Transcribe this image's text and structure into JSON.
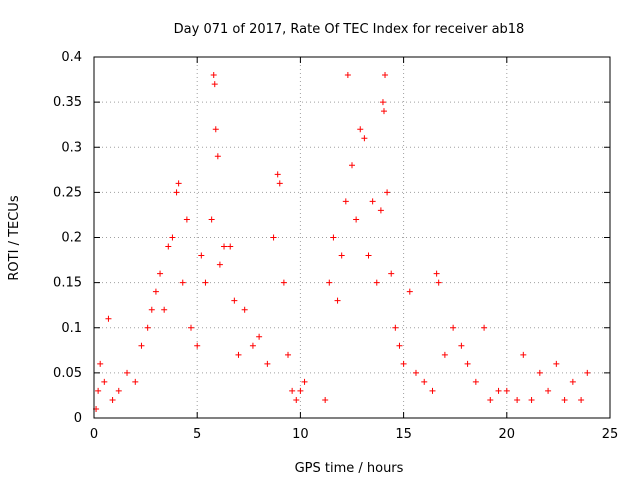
{
  "chart_data": {
    "type": "scatter",
    "title": "Day 071 of 2017, Rate Of TEC Index for receiver ab18",
    "xlabel": "GPS time / hours",
    "ylabel": "ROTI / TECUs",
    "xlim": [
      0,
      25
    ],
    "ylim": [
      0,
      0.4
    ],
    "x_ticks": [
      "0",
      "5",
      "10",
      "15",
      "20",
      "25"
    ],
    "y_ticks": [
      "0",
      "0.05",
      "0.1",
      "0.15",
      "0.2",
      "0.25",
      "0.3",
      "0.35",
      "0.4"
    ],
    "grid": true,
    "marker": "+",
    "series_color": "#ff0000",
    "points": [
      [
        0.1,
        0.01
      ],
      [
        0.2,
        0.03
      ],
      [
        0.3,
        0.06
      ],
      [
        0.5,
        0.04
      ],
      [
        0.7,
        0.11
      ],
      [
        0.9,
        0.02
      ],
      [
        1.2,
        0.03
      ],
      [
        1.6,
        0.05
      ],
      [
        2.0,
        0.04
      ],
      [
        2.3,
        0.08
      ],
      [
        2.6,
        0.1
      ],
      [
        2.8,
        0.12
      ],
      [
        3.0,
        0.14
      ],
      [
        3.2,
        0.16
      ],
      [
        3.4,
        0.12
      ],
      [
        3.6,
        0.19
      ],
      [
        3.8,
        0.2
      ],
      [
        4.0,
        0.25
      ],
      [
        4.1,
        0.26
      ],
      [
        4.3,
        0.15
      ],
      [
        4.5,
        0.22
      ],
      [
        4.7,
        0.1
      ],
      [
        5.0,
        0.08
      ],
      [
        5.2,
        0.18
      ],
      [
        5.4,
        0.15
      ],
      [
        5.7,
        0.22
      ],
      [
        5.8,
        0.38
      ],
      [
        5.85,
        0.37
      ],
      [
        5.9,
        0.32
      ],
      [
        6.0,
        0.29
      ],
      [
        6.1,
        0.17
      ],
      [
        6.3,
        0.19
      ],
      [
        6.6,
        0.19
      ],
      [
        6.8,
        0.13
      ],
      [
        7.0,
        0.07
      ],
      [
        7.3,
        0.12
      ],
      [
        7.7,
        0.08
      ],
      [
        8.0,
        0.09
      ],
      [
        8.4,
        0.06
      ],
      [
        8.7,
        0.2
      ],
      [
        8.9,
        0.27
      ],
      [
        9.0,
        0.26
      ],
      [
        9.2,
        0.15
      ],
      [
        9.4,
        0.07
      ],
      [
        9.6,
        0.03
      ],
      [
        9.8,
        0.02
      ],
      [
        10.0,
        0.03
      ],
      [
        10.2,
        0.04
      ],
      [
        11.2,
        0.02
      ],
      [
        11.4,
        0.15
      ],
      [
        11.6,
        0.2
      ],
      [
        11.8,
        0.13
      ],
      [
        12.0,
        0.18
      ],
      [
        12.2,
        0.24
      ],
      [
        12.3,
        0.38
      ],
      [
        12.5,
        0.28
      ],
      [
        12.7,
        0.22
      ],
      [
        12.9,
        0.32
      ],
      [
        13.1,
        0.31
      ],
      [
        13.3,
        0.18
      ],
      [
        13.5,
        0.24
      ],
      [
        13.7,
        0.15
      ],
      [
        13.9,
        0.23
      ],
      [
        14.0,
        0.35
      ],
      [
        14.05,
        0.34
      ],
      [
        14.1,
        0.38
      ],
      [
        14.2,
        0.25
      ],
      [
        14.4,
        0.16
      ],
      [
        14.6,
        0.1
      ],
      [
        14.8,
        0.08
      ],
      [
        15.0,
        0.06
      ],
      [
        15.3,
        0.14
      ],
      [
        15.6,
        0.05
      ],
      [
        16.0,
        0.04
      ],
      [
        16.4,
        0.03
      ],
      [
        16.6,
        0.16
      ],
      [
        16.7,
        0.15
      ],
      [
        17.0,
        0.07
      ],
      [
        17.4,
        0.1
      ],
      [
        17.8,
        0.08
      ],
      [
        18.1,
        0.06
      ],
      [
        18.5,
        0.04
      ],
      [
        18.9,
        0.1
      ],
      [
        19.2,
        0.02
      ],
      [
        19.6,
        0.03
      ],
      [
        20.0,
        0.03
      ],
      [
        20.5,
        0.02
      ],
      [
        20.8,
        0.07
      ],
      [
        21.2,
        0.02
      ],
      [
        21.6,
        0.05
      ],
      [
        22.0,
        0.03
      ],
      [
        22.4,
        0.06
      ],
      [
        22.8,
        0.02
      ],
      [
        23.2,
        0.04
      ],
      [
        23.6,
        0.02
      ],
      [
        23.9,
        0.05
      ]
    ]
  }
}
